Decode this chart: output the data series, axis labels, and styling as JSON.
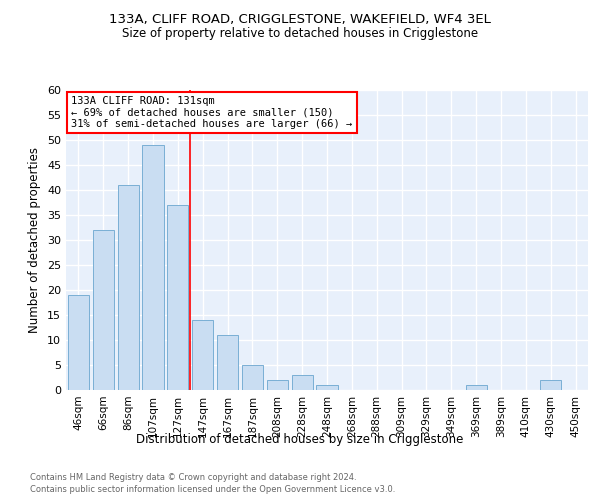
{
  "title1": "133A, CLIFF ROAD, CRIGGLESTONE, WAKEFIELD, WF4 3EL",
  "title2": "Size of property relative to detached houses in Crigglestone",
  "xlabel": "Distribution of detached houses by size in Crigglestone",
  "ylabel": "Number of detached properties",
  "footnote1": "Contains HM Land Registry data © Crown copyright and database right 2024.",
  "footnote2": "Contains public sector information licensed under the Open Government Licence v3.0.",
  "bar_labels": [
    "46sqm",
    "66sqm",
    "86sqm",
    "107sqm",
    "127sqm",
    "147sqm",
    "167sqm",
    "187sqm",
    "208sqm",
    "228sqm",
    "248sqm",
    "268sqm",
    "288sqm",
    "309sqm",
    "329sqm",
    "349sqm",
    "369sqm",
    "389sqm",
    "410sqm",
    "430sqm",
    "450sqm"
  ],
  "bar_values": [
    19,
    32,
    41,
    49,
    37,
    14,
    11,
    5,
    2,
    3,
    1,
    0,
    0,
    0,
    0,
    0,
    1,
    0,
    0,
    2,
    0
  ],
  "bar_color": "#c9ddf2",
  "bar_edge_color": "#7aafd4",
  "vline_x": 4.5,
  "vline_color": "red",
  "annotation_title": "133A CLIFF ROAD: 131sqm",
  "annotation_line1": "← 69% of detached houses are smaller (150)",
  "annotation_line2": "31% of semi-detached houses are larger (66) →",
  "annotation_box_color": "white",
  "annotation_box_edgecolor": "red",
  "ylim": [
    0,
    60
  ],
  "yticks": [
    0,
    5,
    10,
    15,
    20,
    25,
    30,
    35,
    40,
    45,
    50,
    55,
    60
  ],
  "background_color": "#e8f0fb",
  "grid_color": "white",
  "figsize": [
    6.0,
    5.0
  ],
  "dpi": 100
}
